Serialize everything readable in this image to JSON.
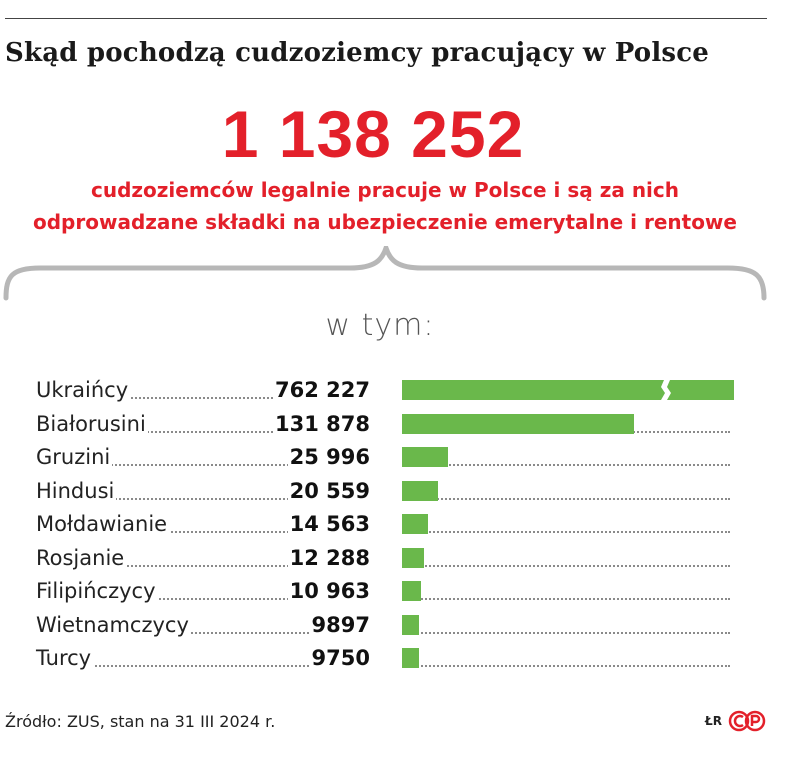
{
  "title": "Skąd pochodzą cudzoziemcy pracujący w Polsce",
  "total": "1 138 252",
  "subtitle_line1": "cudzoziemców legalnie pracuje w Polsce i są za nich",
  "subtitle_line2": "odprowadzane składki na ubezpieczenie emerytalne i rentowe",
  "subheading": "w tym:",
  "source": "Źródło: ZUS, stan na 31 III 2024 r.",
  "credit": "ŁR",
  "logo_text": "©P",
  "colors": {
    "bar": "#6ab84b",
    "accent": "#e3202a"
  },
  "chart_data": {
    "type": "bar",
    "orientation": "horizontal",
    "title": "Skąd pochodzą cudzoziemcy pracujący w Polsce",
    "categories": [
      "Ukraińcy",
      "Białorusini",
      "Gruzini",
      "Hindusi",
      "Mołdawianie",
      "Rosjanie",
      "Filipińczycy",
      "Wietnamczycy",
      "Turcy"
    ],
    "values": [
      762227,
      131878,
      25996,
      20559,
      14563,
      12288,
      10963,
      9897,
      9750
    ],
    "value_labels": [
      "762 227",
      "131 878",
      "25 996",
      "20 559",
      "14 563",
      "12 288",
      "10 963",
      "9897",
      "9750"
    ],
    "broken_axis_first_bar": true,
    "grid": false
  }
}
